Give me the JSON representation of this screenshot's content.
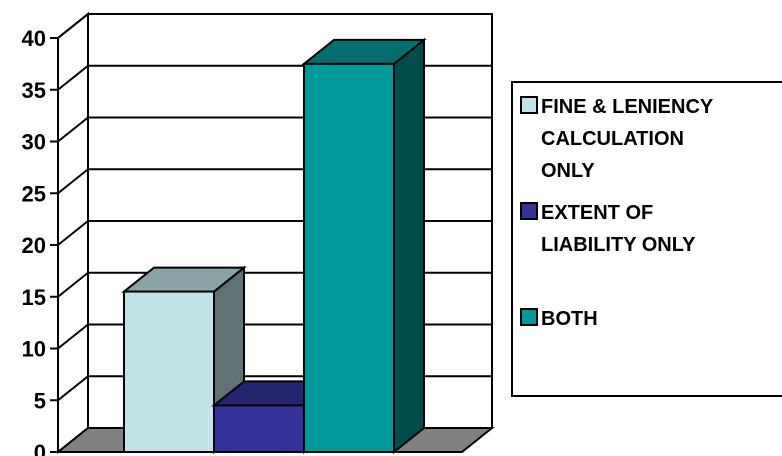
{
  "chart_data": {
    "type": "bar",
    "three_d": true,
    "title": "",
    "xlabel": "",
    "ylabel": "",
    "ylim": [
      0,
      40
    ],
    "yticks": [
      "0",
      "5",
      "10",
      "15",
      "20",
      "25",
      "30",
      "35",
      "40"
    ],
    "grid": true,
    "legend_position": "right",
    "series": [
      {
        "name": "FINE & LENIENCY CALCULATION ONLY",
        "value": 15.5,
        "color": "#BFE3E6",
        "legend_lines": [
          "FINE & LENIENCY",
          "CALCULATION",
          "ONLY"
        ]
      },
      {
        "name": "EXTENT OF LIABILITY ONLY",
        "value": 4.5,
        "color": "#333399",
        "legend_lines": [
          "EXTENT OF",
          "LIABILITY ONLY"
        ]
      },
      {
        "name": "BOTH",
        "value": 37.5,
        "color": "#009999",
        "legend_lines": [
          "BOTH"
        ]
      }
    ]
  }
}
